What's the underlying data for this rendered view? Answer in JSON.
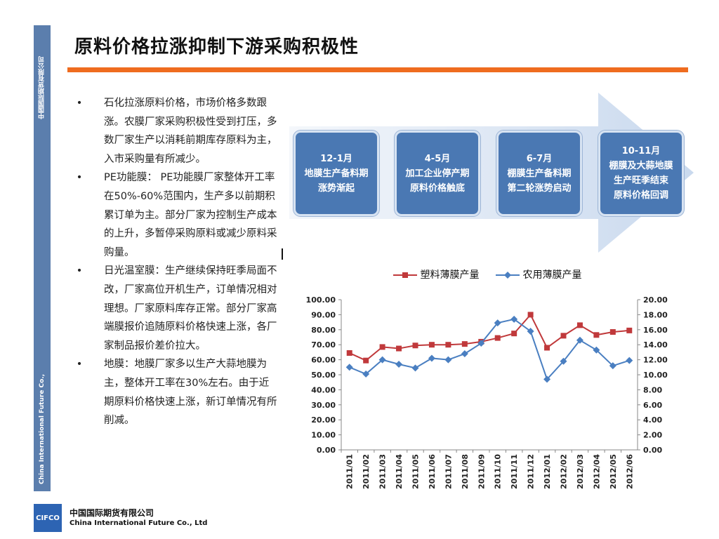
{
  "sidebar": {
    "company_cn": "中国国际期货有限公司",
    "company_en": "China International Future Co., Ltd"
  },
  "title": "原料价格拉涨抑制下游采购积极性",
  "bullets": [
    "石化拉涨原料价格，市场价格多数跟涨。农膜厂家采购积极性受到打压，多数厂家生产以消耗前期库存原料为主，入市采购量有所减少。",
    "PE功能膜： PE功能膜厂家整体开工率在50%-60%范围内，生产多以前期积累订单为主。部分厂家为控制生产成本的上升，多暂停采购原料或减少原料采购量。",
    "日光温室膜：生产继续保持旺季局面不改，厂家高位开机生产，订单情况相对理想。厂家原料库存正常。部分厂家高端膜报价追随原料价格快速上涨，各厂家制品报价差价拉大。",
    "地膜：地膜厂家多以生产大蒜地膜为主，整体开工率在30%左右。由于近期原料价格快速上涨，新订单情况有所削减。"
  ],
  "bullet_symbol": "•",
  "timeline": [
    {
      "line1": "12-1月",
      "line2": "地膜生产备料期",
      "line3": "涨势渐起"
    },
    {
      "line1": "4-5月",
      "line2": "加工企业停产期",
      "line3": "原料价格触底"
    },
    {
      "line1": "6-7月",
      "line2": "棚膜生产备料期",
      "line3": "第二轮涨势启动"
    },
    {
      "line1": "10-11月",
      "line2": "棚膜及大蒜地膜",
      "line3": "生产旺季结束",
      "line4": "原料价格回调"
    }
  ],
  "colors": {
    "accent": "#ef6c1f",
    "sidebar": "#5b7ead",
    "plastic_series": "#c0393b",
    "agri_series": "#4a7fc1"
  },
  "chart_data": {
    "type": "line",
    "categories": [
      "2011/01",
      "2011/02",
      "2011/03",
      "2011/04",
      "2011/05",
      "2011/06",
      "2011/07",
      "2011/08",
      "2011/09",
      "2011/10",
      "2011/11",
      "2011/12",
      "2012/01",
      "2012/02",
      "2012/03",
      "2012/04",
      "2012/05",
      "2012/06"
    ],
    "series": [
      {
        "name": "塑料薄膜产量",
        "axis": "left",
        "marker": "square",
        "values": [
          64.5,
          59.5,
          68.5,
          67.5,
          69.5,
          70,
          70,
          70.5,
          72,
          74.5,
          77.5,
          90,
          68,
          76,
          83,
          76.5,
          78.5,
          79.5
        ]
      },
      {
        "name": "农用薄膜产量",
        "axis": "right",
        "marker": "diamond",
        "values": [
          11.0,
          10.1,
          12.0,
          11.4,
          10.9,
          12.2,
          12.0,
          12.8,
          14.2,
          16.9,
          17.4,
          15.8,
          9.4,
          11.8,
          14.6,
          13.3,
          11.2,
          11.9
        ]
      }
    ],
    "left_axis": {
      "ylim": [
        0,
        100
      ],
      "ticks": [
        "0.00",
        "10.00",
        "20.00",
        "30.00",
        "40.00",
        "50.00",
        "60.00",
        "70.00",
        "80.00",
        "90.00",
        "100.00"
      ]
    },
    "right_axis": {
      "ylim": [
        0,
        20
      ],
      "ticks": [
        "0.00",
        "2.00",
        "4.00",
        "6.00",
        "8.00",
        "10.00",
        "12.00",
        "14.00",
        "16.00",
        "18.00",
        "20.00"
      ]
    },
    "legend": "top",
    "grid": false
  },
  "footer": {
    "logo_text": "CIFCO",
    "company_cn": "中国国际期货有限公司",
    "company_en": "China International Future Co., Ltd"
  }
}
